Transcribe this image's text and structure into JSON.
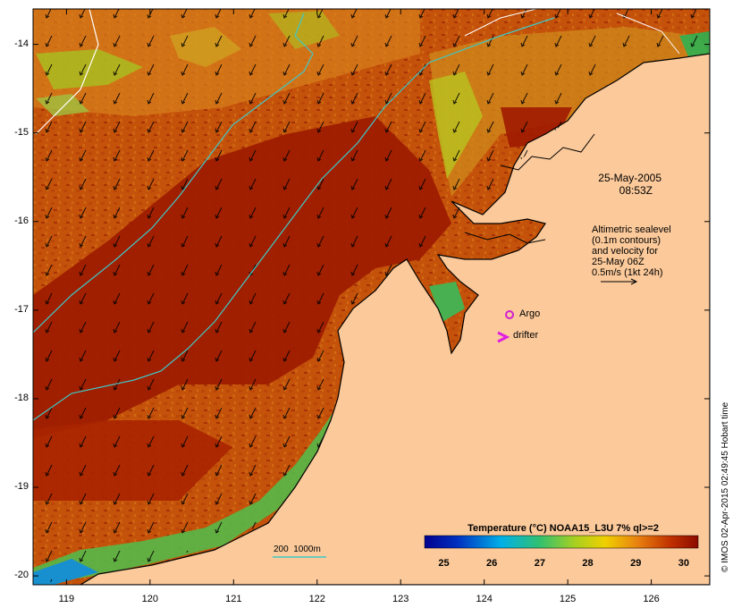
{
  "map": {
    "lat_labels": [
      "-14",
      "-15",
      "-16",
      "-17",
      "-18",
      "-19",
      "-20"
    ],
    "lat_values": [
      -14,
      -15,
      -16,
      -17,
      -18,
      -19,
      -20
    ],
    "lon_labels": [
      "119",
      "120",
      "121",
      "122",
      "123",
      "124",
      "125",
      "126"
    ],
    "lon_values": [
      119,
      120,
      121,
      122,
      123,
      124,
      125,
      126
    ],
    "extent": {
      "lon": [
        118.6,
        126.7
      ],
      "lat": [
        -20.1,
        -13.6
      ]
    }
  },
  "annotations": {
    "date_line1": "25-May-2005",
    "date_line2": "08:53Z",
    "altimetry_lines": [
      "Altimetric sealevel",
      "(0.1m contours)",
      "and velocity for",
      "25-May 06Z",
      "0.5m/s (1kt 24h)"
    ],
    "argo_label": "Argo",
    "drifter_label": "drifter",
    "isobath_label": "200  1000m"
  },
  "colorbar": {
    "title": "Temperature (°C) NOAA15_L3U 7% ql>=2",
    "ticks": [
      "25",
      "26",
      "27",
      "28",
      "29",
      "30"
    ],
    "tick_values": [
      25,
      26,
      27,
      28,
      29,
      30
    ],
    "range": [
      24.6,
      30.3
    ]
  },
  "credit": "© IMOS 02-Apr-2015 02:49:45 Hobart time",
  "colors": {
    "land": "#fbc99a",
    "ocean_warm": "#9c1a00",
    "ocean_mid": "#c95a0c",
    "ocean_cool": "#39b56a",
    "isobath_200": "#40c8c8",
    "isobath_1000": "#ffffff",
    "argo": "#d020d0",
    "drifter": "#e020e0"
  }
}
